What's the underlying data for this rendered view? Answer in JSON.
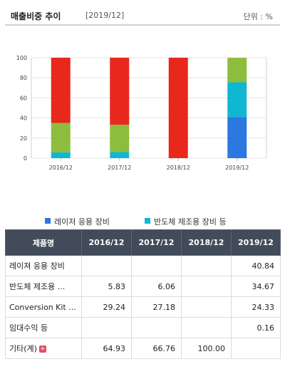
{
  "header": {
    "title": "매출비중 추이",
    "period": "[2019/12]",
    "unit": "단위 : %"
  },
  "chart_data": {
    "type": "bar",
    "stacked": true,
    "categories": [
      "2016/12",
      "2017/12",
      "2018/12",
      "2019/12"
    ],
    "ylim": [
      0,
      100
    ],
    "yticks": [
      0,
      20,
      40,
      60,
      80,
      100
    ],
    "series": [
      {
        "name": "레이저 응용 장비",
        "color": "#2b78e0",
        "values": [
          0,
          0,
          0,
          40.84
        ]
      },
      {
        "name": "반도체 제조용 장비 등",
        "color": "#0fb8d0",
        "values": [
          5.83,
          6.06,
          0,
          34.67
        ]
      },
      {
        "name": "Conversion Kit , A/S 등",
        "color": "#8cbd3c",
        "values": [
          29.24,
          27.18,
          0,
          24.33
        ]
      },
      {
        "name": "임대수익 등",
        "color": "#f5a623",
        "values": [
          0,
          0,
          0,
          0.16
        ]
      },
      {
        "name": "기타(계)",
        "color": "#e8281d",
        "values": [
          64.93,
          66.76,
          100.0,
          0
        ]
      }
    ],
    "grid": true,
    "legend": "bottom"
  },
  "table": {
    "headers": [
      "제품명",
      "2016/12",
      "2017/12",
      "2018/12",
      "2019/12"
    ],
    "rows": [
      {
        "name": "레이져 응용 장비",
        "values": [
          "",
          "",
          "",
          "40.84"
        ],
        "expandable": false
      },
      {
        "name": "반도체 제조용 ...",
        "values": [
          "5.83",
          "6.06",
          "",
          "34.67"
        ],
        "expandable": false
      },
      {
        "name": "Conversion Kit ...",
        "values": [
          "29.24",
          "27.18",
          "",
          "24.33"
        ],
        "expandable": false
      },
      {
        "name": "임대수익 등",
        "values": [
          "",
          "",
          "",
          "0.16"
        ],
        "expandable": false
      },
      {
        "name": "기타(계)",
        "values": [
          "64.93",
          "66.76",
          "100.00",
          ""
        ],
        "expandable": true
      }
    ]
  }
}
